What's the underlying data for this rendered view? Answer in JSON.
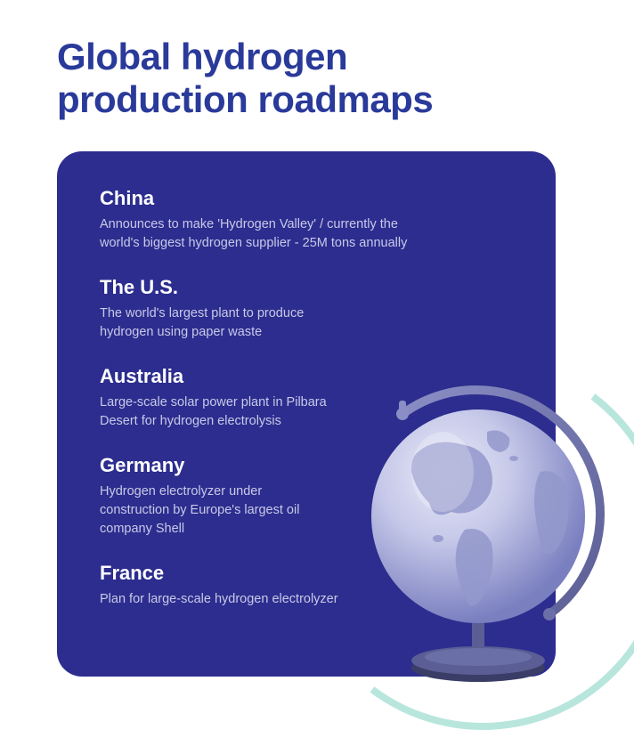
{
  "title_line1": "Global hydrogen",
  "title_line2": "production roadmaps",
  "colors": {
    "title": "#2a3a9a",
    "card_bg": "#2c2d8e",
    "country_name": "#ffffff",
    "country_desc": "#c8c9e8",
    "arc": "#b8e6dc",
    "globe_sphere_light": "#c5c8e8",
    "globe_sphere_dark": "#8a8fc8",
    "globe_land": "#9da2d0",
    "globe_stand": "#6b6fa8",
    "globe_base": "#4a4d7a"
  },
  "countries": [
    {
      "name": "China",
      "desc": "Announces to make 'Hydrogen Valley' / currently the world's biggest hydrogen supplier - 25M tons annually",
      "narrow": false
    },
    {
      "name": "The U.S.",
      "desc": "The world's largest plant to produce hydrogen using paper waste",
      "narrow": true
    },
    {
      "name": "Australia",
      "desc": "Large-scale solar power plant in Pilbara Desert for hydrogen electrolysis",
      "narrow": true
    },
    {
      "name": "Germany",
      "desc": "Hydrogen electrolyzer under construction by Europe's largest oil company Shell",
      "narrow": true
    },
    {
      "name": "France",
      "desc": "Plan for large-scale hydrogen electrolyzer",
      "narrow": false
    }
  ]
}
